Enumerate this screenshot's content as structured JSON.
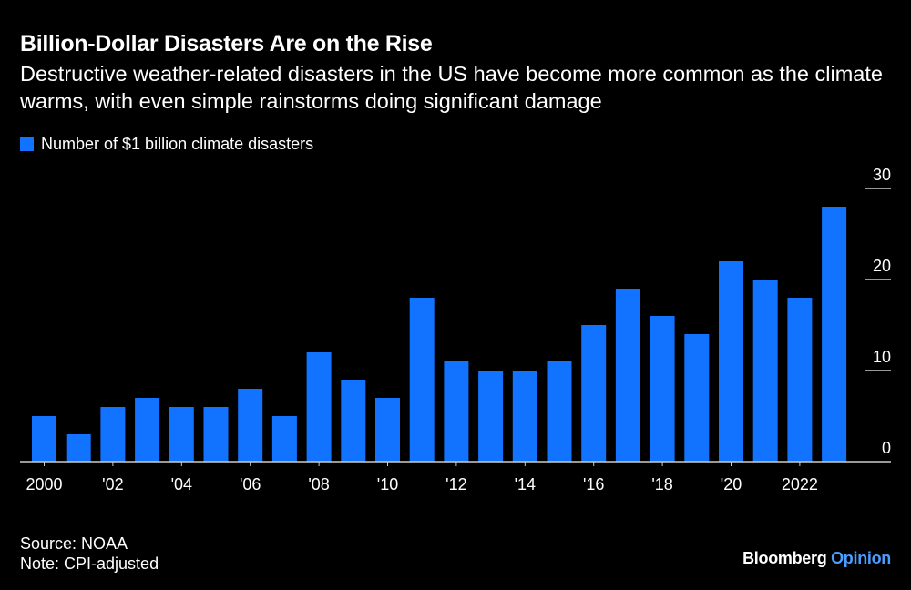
{
  "title": "Billion-Dollar Disasters Are on the Rise",
  "subtitle": "Destructive weather-related disasters in the US have become more common as the climate warms, with even simple rainstorms doing significant damage",
  "source": "Source: NOAA",
  "note": "Note: CPI-adjusted",
  "brand": {
    "name": "Bloomberg",
    "section": "Opinion",
    "section_color": "#4a9eff"
  },
  "colors": {
    "bar": "#1173ff",
    "background": "#000000",
    "grid": "#cccccc"
  },
  "chart_data": {
    "type": "bar",
    "categories": [
      "2000",
      "2001",
      "2002",
      "2003",
      "2004",
      "2005",
      "2006",
      "2007",
      "2008",
      "2009",
      "2010",
      "2011",
      "2012",
      "2013",
      "2014",
      "2015",
      "2016",
      "2017",
      "2018",
      "2019",
      "2020",
      "2021",
      "2022",
      "2023"
    ],
    "tick_labels": [
      {
        "category": "2000",
        "label": "2000"
      },
      {
        "category": "2002",
        "label": "'02"
      },
      {
        "category": "2004",
        "label": "'04"
      },
      {
        "category": "2006",
        "label": "'06"
      },
      {
        "category": "2008",
        "label": "'08"
      },
      {
        "category": "2010",
        "label": "'10"
      },
      {
        "category": "2012",
        "label": "'12"
      },
      {
        "category": "2014",
        "label": "'14"
      },
      {
        "category": "2016",
        "label": "'16"
      },
      {
        "category": "2018",
        "label": "'18"
      },
      {
        "category": "2020",
        "label": "'20"
      },
      {
        "category": "2022",
        "label": "2022"
      }
    ],
    "series": [
      {
        "name": "Number of $1 billion climate disasters",
        "values": [
          5,
          3,
          6,
          7,
          6,
          6,
          8,
          5,
          12,
          9,
          7,
          18,
          11,
          10,
          10,
          11,
          15,
          19,
          16,
          14,
          22,
          20,
          18,
          28
        ]
      }
    ],
    "ylim": [
      0,
      30
    ],
    "yticks": [
      0,
      10,
      20,
      30
    ],
    "y_axis_side": "right",
    "legend_placement": "top-left",
    "grid": true
  }
}
